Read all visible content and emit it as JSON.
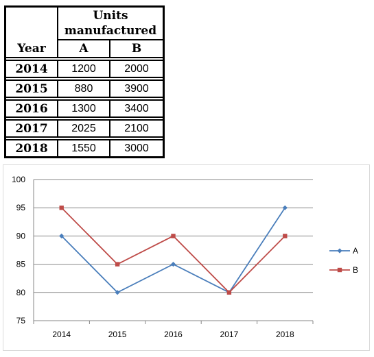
{
  "table": {
    "year_header": "Year",
    "group_header": "Units manufactured",
    "col_a": "A",
    "col_b": "B",
    "rows": [
      {
        "year": "2014",
        "a": "1200",
        "b": "2000"
      },
      {
        "year": "2015",
        "a": "880",
        "b": "3900"
      },
      {
        "year": "2016",
        "a": "1300",
        "b": "3400"
      },
      {
        "year": "2017",
        "a": "2025",
        "b": "2100"
      },
      {
        "year": "2018",
        "a": "1550",
        "b": "3000"
      }
    ]
  },
  "chart_data": {
    "type": "line",
    "categories": [
      "2014",
      "2015",
      "2016",
      "2017",
      "2018"
    ],
    "series": [
      {
        "name": "A",
        "values": [
          90,
          80,
          85,
          80,
          95
        ],
        "color": "#4a7ebb",
        "marker": "diamond"
      },
      {
        "name": "B",
        "values": [
          95,
          85,
          90,
          80,
          90
        ],
        "color": "#be4b48",
        "marker": "square"
      }
    ],
    "title": "",
    "xlabel": "",
    "ylabel": "",
    "ylim": [
      75,
      100
    ],
    "yticks": [
      "100",
      "95",
      "90",
      "85",
      "80",
      "75"
    ],
    "grid": true,
    "legend": "right"
  }
}
